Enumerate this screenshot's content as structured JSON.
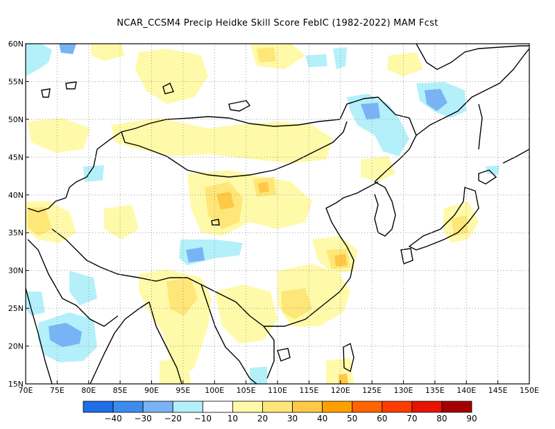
{
  "title": "NCAR_CCSM4 Precip Heidke Skill Score FebIC (1982-2022) MAM Fcst",
  "map": {
    "lon_range": [
      70,
      150
    ],
    "lat_range": [
      15,
      60
    ],
    "lat_ticks": [
      "60N",
      "55N",
      "50N",
      "45N",
      "40N",
      "35N",
      "30N",
      "25N",
      "20N",
      "15N"
    ],
    "lon_ticks": [
      "70E",
      "75E",
      "80E",
      "85E",
      "90E",
      "95E",
      "100E",
      "105E",
      "110E",
      "115E",
      "120E",
      "125E",
      "130E",
      "135E",
      "140E",
      "145E",
      "150E"
    ],
    "gridlines": "dotted"
  },
  "colorbar": {
    "labels": [
      "−40",
      "−30",
      "−20",
      "−10",
      "10",
      "20",
      "30",
      "40",
      "50",
      "60",
      "70",
      "80",
      "90"
    ],
    "colors": [
      "#1e6ee6",
      "#3c8cf0",
      "#78b4f5",
      "#b4f0fa",
      "#ffffff",
      "#fffaaa",
      "#ffe678",
      "#ffc846",
      "#ffa000",
      "#ff6400",
      "#ff3c00",
      "#e61400",
      "#a50000"
    ]
  }
}
